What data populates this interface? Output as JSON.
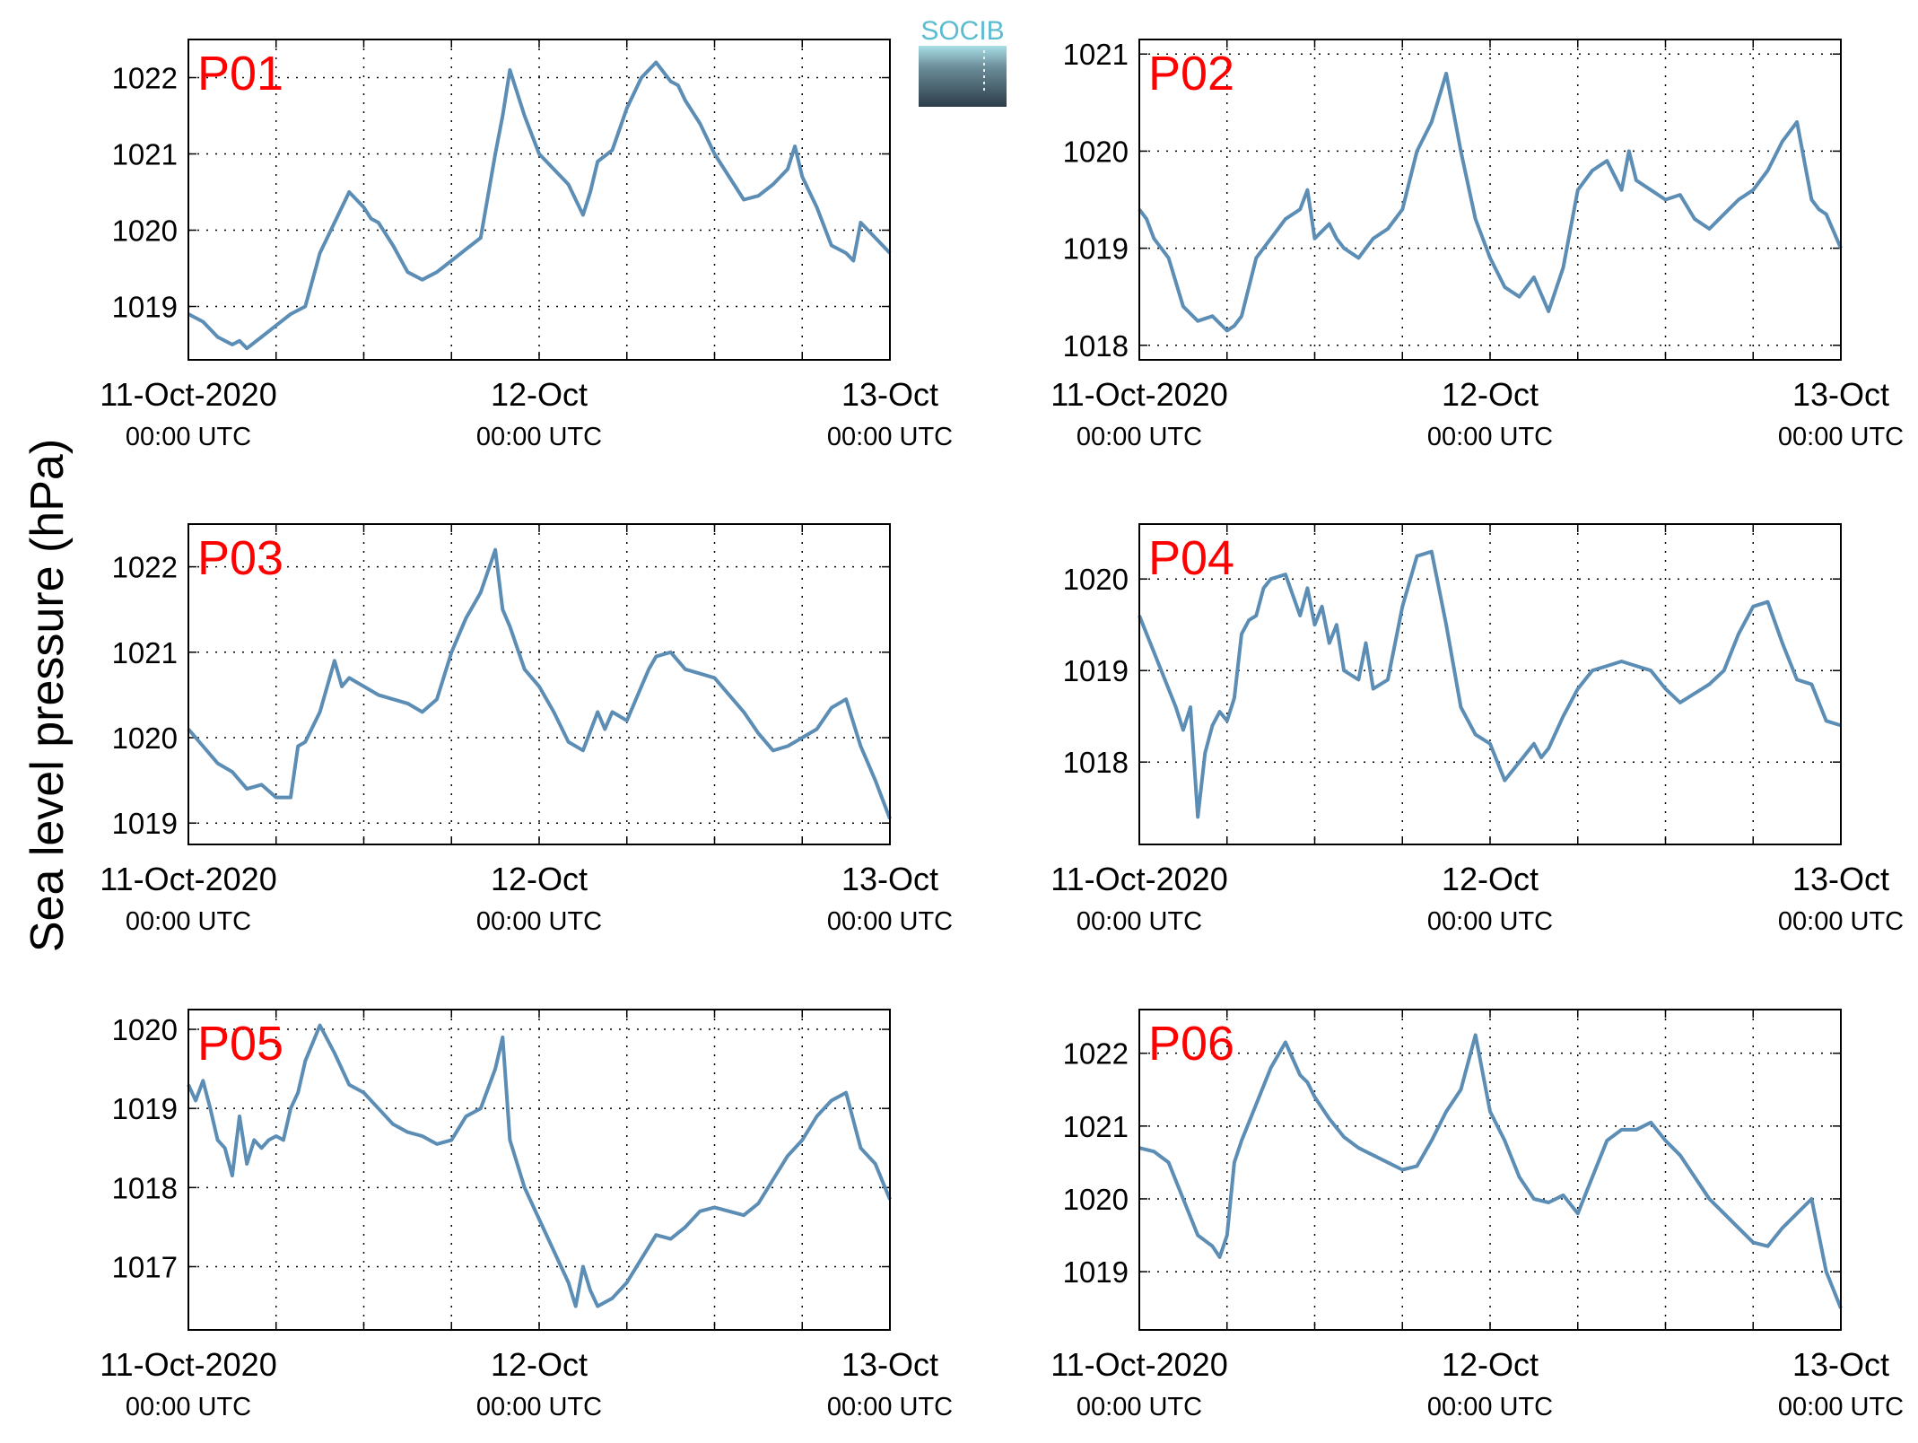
{
  "figure": {
    "ylabel": "Sea level pressure (hPa)",
    "logo_text": "SOCIB",
    "line_color": "#5b8db5",
    "station_label_color": "#ff0000"
  },
  "x_axis": {
    "range_hours": [
      0,
      48
    ],
    "gridline_hours": [
      0,
      6,
      12,
      18,
      24,
      30,
      36,
      42,
      48
    ],
    "tick_labels": [
      {
        "hour": 0,
        "date": "11-Oct-2020",
        "time": "00:00 UTC"
      },
      {
        "hour": 24,
        "date": "12-Oct",
        "time": "00:00 UTC"
      },
      {
        "hour": 48,
        "date": "13-Oct",
        "time": "00:00 UTC"
      }
    ]
  },
  "chart_data": [
    {
      "type": "line",
      "title": "P01",
      "ylim": [
        1018.3,
        1022.5
      ],
      "yticks": [
        1019,
        1020,
        1021,
        1022
      ],
      "series": [
        {
          "x": [
            0,
            1,
            2,
            3,
            3.5,
            4,
            5,
            6,
            7,
            8,
            9,
            10,
            11,
            12,
            12.5,
            13,
            14,
            15,
            16,
            17,
            18,
            19,
            20,
            21,
            21.5,
            22,
            23,
            24,
            25,
            26,
            27,
            27.5,
            28,
            29,
            30,
            31,
            32,
            33,
            33.5,
            34,
            35,
            36,
            37,
            38,
            39,
            40,
            41,
            41.5,
            42,
            43,
            44,
            45,
            45.5,
            46,
            47,
            48
          ],
          "y": [
            1018.9,
            1018.8,
            1018.6,
            1018.5,
            1018.55,
            1018.45,
            1018.6,
            1018.75,
            1018.9,
            1019.0,
            1019.7,
            1020.1,
            1020.5,
            1020.3,
            1020.15,
            1020.1,
            1019.8,
            1019.45,
            1019.35,
            1019.45,
            1019.6,
            1019.75,
            1019.9,
            1021.0,
            1021.5,
            1022.1,
            1021.5,
            1021.0,
            1020.8,
            1020.6,
            1020.2,
            1020.5,
            1020.9,
            1021.05,
            1021.6,
            1022.0,
            1022.2,
            1021.95,
            1021.9,
            1021.7,
            1021.4,
            1021.0,
            1020.7,
            1020.4,
            1020.45,
            1020.6,
            1020.8,
            1021.1,
            1020.7,
            1020.3,
            1019.8,
            1019.7,
            1019.6,
            1020.1,
            1019.9,
            1019.7
          ]
        }
      ]
    },
    {
      "type": "line",
      "title": "P02",
      "ylim": [
        1017.85,
        1021.15
      ],
      "yticks": [
        1018,
        1019,
        1020,
        1021
      ],
      "series": [
        {
          "x": [
            0,
            0.5,
            1,
            2,
            3,
            4,
            5,
            6,
            6.5,
            7,
            8,
            9,
            10,
            11,
            11.5,
            12,
            13,
            13.5,
            14,
            15,
            16,
            17,
            18,
            19,
            20,
            21,
            22,
            23,
            24,
            25,
            26,
            27,
            28,
            29,
            30,
            31,
            32,
            33,
            33.5,
            34,
            35,
            36,
            37,
            38,
            39,
            40,
            41,
            42,
            43,
            44,
            45,
            46,
            46.5,
            47,
            48
          ],
          "y": [
            1019.4,
            1019.3,
            1019.1,
            1018.9,
            1018.4,
            1018.25,
            1018.3,
            1018.15,
            1018.2,
            1018.3,
            1018.9,
            1019.1,
            1019.3,
            1019.4,
            1019.6,
            1019.1,
            1019.25,
            1019.1,
            1019.0,
            1018.9,
            1019.1,
            1019.2,
            1019.4,
            1020.0,
            1020.3,
            1020.8,
            1020.0,
            1019.3,
            1018.9,
            1018.6,
            1018.5,
            1018.7,
            1018.35,
            1018.8,
            1019.6,
            1019.8,
            1019.9,
            1019.6,
            1020.0,
            1019.7,
            1019.6,
            1019.5,
            1019.55,
            1019.3,
            1019.2,
            1019.35,
            1019.5,
            1019.6,
            1019.8,
            1020.1,
            1020.3,
            1019.5,
            1019.4,
            1019.35,
            1019.0
          ]
        }
      ]
    },
    {
      "type": "line",
      "title": "P03",
      "ylim": [
        1018.75,
        1022.5
      ],
      "yticks": [
        1019,
        1020,
        1021,
        1022
      ],
      "series": [
        {
          "x": [
            0,
            1,
            2,
            3,
            4,
            5,
            6,
            7,
            7.5,
            8,
            9,
            10,
            10.5,
            11,
            12,
            13,
            14,
            15,
            16,
            17,
            18,
            19,
            20,
            21,
            21.5,
            22,
            23,
            23.5,
            24,
            25,
            26,
            27,
            28,
            28.5,
            29,
            30,
            31,
            31.5,
            32,
            33,
            34,
            35,
            36,
            37,
            38,
            39,
            40,
            41,
            42,
            43,
            44,
            45,
            46,
            46.5,
            47,
            48
          ],
          "y": [
            1020.1,
            1019.9,
            1019.7,
            1019.6,
            1019.4,
            1019.45,
            1019.3,
            1019.3,
            1019.9,
            1019.95,
            1020.3,
            1020.9,
            1020.6,
            1020.7,
            1020.6,
            1020.5,
            1020.45,
            1020.4,
            1020.3,
            1020.45,
            1021.0,
            1021.4,
            1021.7,
            1022.2,
            1021.5,
            1021.3,
            1020.8,
            1020.7,
            1020.6,
            1020.3,
            1019.95,
            1019.85,
            1020.3,
            1020.1,
            1020.3,
            1020.2,
            1020.6,
            1020.8,
            1020.95,
            1021.0,
            1020.8,
            1020.75,
            1020.7,
            1020.5,
            1020.3,
            1020.05,
            1019.85,
            1019.9,
            1020.0,
            1020.1,
            1020.35,
            1020.45,
            1019.9,
            1019.7,
            1019.5,
            1019.05
          ]
        }
      ]
    },
    {
      "type": "line",
      "title": "P04",
      "ylim": [
        1017.1,
        1020.6
      ],
      "yticks": [
        1018,
        1019,
        1020
      ],
      "series": [
        {
          "x": [
            0,
            1,
            2,
            2.5,
            3,
            3.5,
            4,
            4.5,
            5,
            5.5,
            6,
            6.5,
            7,
            7.5,
            8,
            8.5,
            9,
            10,
            11,
            11.5,
            12,
            12.5,
            13,
            13.5,
            14,
            15,
            15.5,
            16,
            17,
            18,
            19,
            20,
            21,
            22,
            23,
            24,
            25,
            26,
            27,
            27.5,
            28,
            29,
            30,
            31,
            32,
            33,
            34,
            35,
            36,
            37,
            38,
            39,
            40,
            41,
            42,
            43,
            44,
            45,
            46,
            47,
            48
          ],
          "y": [
            1019.6,
            1019.2,
            1018.8,
            1018.6,
            1018.35,
            1018.6,
            1017.4,
            1018.1,
            1018.4,
            1018.55,
            1018.45,
            1018.7,
            1019.4,
            1019.55,
            1019.6,
            1019.9,
            1020.0,
            1020.05,
            1019.6,
            1019.9,
            1019.5,
            1019.7,
            1019.3,
            1019.5,
            1019.0,
            1018.9,
            1019.3,
            1018.8,
            1018.9,
            1019.7,
            1020.25,
            1020.3,
            1019.5,
            1018.6,
            1018.3,
            1018.2,
            1017.8,
            1018.0,
            1018.2,
            1018.05,
            1018.15,
            1018.5,
            1018.8,
            1019.0,
            1019.05,
            1019.1,
            1019.05,
            1019.0,
            1018.8,
            1018.65,
            1018.75,
            1018.85,
            1019.0,
            1019.4,
            1019.7,
            1019.75,
            1019.3,
            1018.9,
            1018.85,
            1018.45,
            1018.4
          ]
        }
      ]
    },
    {
      "type": "line",
      "title": "P05",
      "ylim": [
        1016.2,
        1020.25
      ],
      "yticks": [
        1017,
        1018,
        1019,
        1020
      ],
      "series": [
        {
          "x": [
            0,
            0.5,
            1,
            1.5,
            2,
            2.5,
            3,
            3.5,
            4,
            4.5,
            5,
            5.5,
            6,
            6.5,
            7,
            7.5,
            8,
            9,
            10,
            11,
            12,
            13,
            14,
            15,
            16,
            17,
            18,
            19,
            20,
            21,
            21.5,
            22,
            23,
            24,
            25,
            26,
            26.5,
            27,
            27.5,
            28,
            29,
            30,
            31,
            32,
            33,
            34,
            35,
            36,
            37,
            38,
            39,
            40,
            41,
            42,
            43,
            44,
            45,
            46,
            47,
            48
          ],
          "y": [
            1019.3,
            1019.1,
            1019.35,
            1019.0,
            1018.6,
            1018.5,
            1018.15,
            1018.9,
            1018.3,
            1018.6,
            1018.5,
            1018.6,
            1018.65,
            1018.6,
            1019.0,
            1019.2,
            1019.6,
            1020.05,
            1019.7,
            1019.3,
            1019.2,
            1019.0,
            1018.8,
            1018.7,
            1018.65,
            1018.55,
            1018.6,
            1018.9,
            1019.0,
            1019.5,
            1019.9,
            1018.6,
            1018.0,
            1017.6,
            1017.2,
            1016.8,
            1016.5,
            1017.0,
            1016.7,
            1016.5,
            1016.6,
            1016.8,
            1017.1,
            1017.4,
            1017.35,
            1017.5,
            1017.7,
            1017.75,
            1017.7,
            1017.65,
            1017.8,
            1018.1,
            1018.4,
            1018.6,
            1018.9,
            1019.1,
            1019.2,
            1018.5,
            1018.3,
            1017.85
          ]
        }
      ]
    },
    {
      "type": "line",
      "title": "P06",
      "ylim": [
        1018.2,
        1022.6
      ],
      "yticks": [
        1019,
        1020,
        1021,
        1022
      ],
      "series": [
        {
          "x": [
            0,
            1,
            2,
            3,
            4,
            5,
            5.5,
            6,
            6.5,
            7,
            8,
            9,
            10,
            11,
            11.5,
            12,
            13,
            14,
            15,
            16,
            17,
            18,
            19,
            20,
            21,
            22,
            23,
            24,
            25,
            26,
            27,
            28,
            29,
            30,
            31,
            32,
            33,
            34,
            35,
            36,
            37,
            38,
            39,
            40,
            41,
            42,
            43,
            44,
            45,
            46,
            47,
            48
          ],
          "y": [
            1020.7,
            1020.65,
            1020.5,
            1020.0,
            1019.5,
            1019.35,
            1019.2,
            1019.5,
            1020.5,
            1020.8,
            1021.3,
            1021.8,
            1022.15,
            1021.7,
            1021.6,
            1021.4,
            1021.1,
            1020.85,
            1020.7,
            1020.6,
            1020.5,
            1020.4,
            1020.45,
            1020.8,
            1021.2,
            1021.5,
            1022.25,
            1021.2,
            1020.8,
            1020.3,
            1020.0,
            1019.95,
            1020.05,
            1019.8,
            1020.3,
            1020.8,
            1020.95,
            1020.95,
            1021.05,
            1020.8,
            1020.6,
            1020.3,
            1020.0,
            1019.8,
            1019.6,
            1019.4,
            1019.35,
            1019.6,
            1019.8,
            1020.0,
            1019.0,
            1018.5
          ]
        }
      ]
    }
  ]
}
